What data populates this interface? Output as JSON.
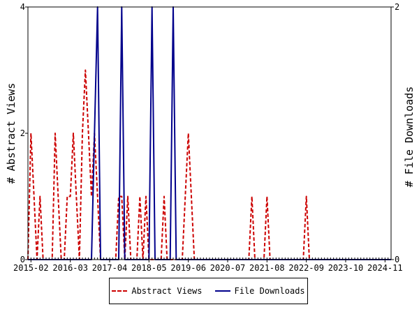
{
  "chart_data": {
    "type": "line",
    "title": "",
    "ylabel_left": "# Abstract Views",
    "ylabel_right": "# File Downloads",
    "ylim_left": [
      0,
      4
    ],
    "ylim_right": [
      0,
      2
    ],
    "yticks_left": [
      "0",
      "2",
      "4"
    ],
    "yticks_right": [
      "0",
      "2"
    ],
    "xlim": [
      2015.0,
      2025.0
    ],
    "xticks": [
      {
        "label": "2015-02",
        "x": 2015.083
      },
      {
        "label": "2016-03",
        "x": 2016.167
      },
      {
        "label": "2017-04",
        "x": 2017.25
      },
      {
        "label": "2018-05",
        "x": 2018.333
      },
      {
        "label": "2019-06",
        "x": 2019.417
      },
      {
        "label": "2020-07",
        "x": 2020.5
      },
      {
        "label": "2021-08",
        "x": 2021.583
      },
      {
        "label": "2022-09",
        "x": 2022.667
      },
      {
        "label": "2023-10",
        "x": 2023.75
      },
      {
        "label": "2024-11",
        "x": 2024.833
      }
    ],
    "legend_position": "bottom",
    "series": [
      {
        "name": "Abstract Views",
        "axis": "left",
        "color": "#cc0000",
        "style": "dashed",
        "points": [
          [
            2015.0,
            0
          ],
          [
            2015.083,
            2
          ],
          [
            2015.167,
            1
          ],
          [
            2015.25,
            0
          ],
          [
            2015.333,
            1
          ],
          [
            2015.417,
            0
          ],
          [
            2015.5,
            0
          ],
          [
            2015.583,
            0
          ],
          [
            2015.667,
            0
          ],
          [
            2015.75,
            2
          ],
          [
            2015.833,
            1
          ],
          [
            2015.917,
            0
          ],
          [
            2016.0,
            0
          ],
          [
            2016.083,
            1
          ],
          [
            2016.167,
            1
          ],
          [
            2016.25,
            2
          ],
          [
            2016.333,
            1
          ],
          [
            2016.417,
            0
          ],
          [
            2016.5,
            2
          ],
          [
            2016.583,
            3
          ],
          [
            2016.667,
            2
          ],
          [
            2016.75,
            1
          ],
          [
            2016.833,
            2
          ],
          [
            2016.917,
            1
          ],
          [
            2017.0,
            0
          ],
          [
            2017.083,
            0
          ],
          [
            2017.167,
            0
          ],
          [
            2017.25,
            0
          ],
          [
            2017.333,
            0
          ],
          [
            2017.417,
            0
          ],
          [
            2017.5,
            1
          ],
          [
            2017.583,
            1
          ],
          [
            2017.667,
            0
          ],
          [
            2017.75,
            1
          ],
          [
            2017.833,
            0
          ],
          [
            2017.917,
            0
          ],
          [
            2018.0,
            0
          ],
          [
            2018.083,
            1
          ],
          [
            2018.167,
            0
          ],
          [
            2018.25,
            1
          ],
          [
            2018.333,
            0
          ],
          [
            2018.417,
            0
          ],
          [
            2018.5,
            0
          ],
          [
            2018.583,
            0
          ],
          [
            2018.667,
            0
          ],
          [
            2018.75,
            1
          ],
          [
            2018.833,
            0
          ],
          [
            2018.917,
            0
          ],
          [
            2019.0,
            0
          ],
          [
            2019.083,
            0
          ],
          [
            2019.167,
            0
          ],
          [
            2019.25,
            0
          ],
          [
            2019.333,
            1
          ],
          [
            2019.417,
            2
          ],
          [
            2019.5,
            1
          ],
          [
            2019.583,
            0
          ],
          [
            2019.667,
            0
          ],
          [
            2019.75,
            0
          ],
          [
            2019.833,
            0
          ],
          [
            2019.917,
            0
          ],
          [
            2020.0,
            0
          ],
          [
            2020.5,
            0
          ],
          [
            2021.0,
            0
          ],
          [
            2021.083,
            0
          ],
          [
            2021.167,
            1
          ],
          [
            2021.25,
            0
          ],
          [
            2021.333,
            0
          ],
          [
            2021.417,
            0
          ],
          [
            2021.5,
            0
          ],
          [
            2021.583,
            1
          ],
          [
            2021.667,
            0
          ],
          [
            2021.75,
            0
          ],
          [
            2022.0,
            0
          ],
          [
            2022.5,
            0
          ],
          [
            2022.583,
            0
          ],
          [
            2022.667,
            1
          ],
          [
            2022.75,
            0
          ],
          [
            2022.833,
            0
          ],
          [
            2023.0,
            0
          ],
          [
            2024.0,
            0
          ],
          [
            2025.0,
            0
          ]
        ]
      },
      {
        "name": "File Downloads",
        "axis": "right",
        "color": "#00008b",
        "style": "solid",
        "points": [
          [
            2015.0,
            0
          ],
          [
            2016.75,
            0
          ],
          [
            2016.833,
            1
          ],
          [
            2016.917,
            2
          ],
          [
            2017.0,
            0
          ],
          [
            2017.5,
            0
          ],
          [
            2017.583,
            2
          ],
          [
            2017.667,
            0
          ],
          [
            2018.333,
            0
          ],
          [
            2018.417,
            2
          ],
          [
            2018.5,
            0
          ],
          [
            2018.917,
            0
          ],
          [
            2019.0,
            2
          ],
          [
            2019.083,
            0
          ],
          [
            2025.0,
            0
          ]
        ]
      }
    ]
  }
}
